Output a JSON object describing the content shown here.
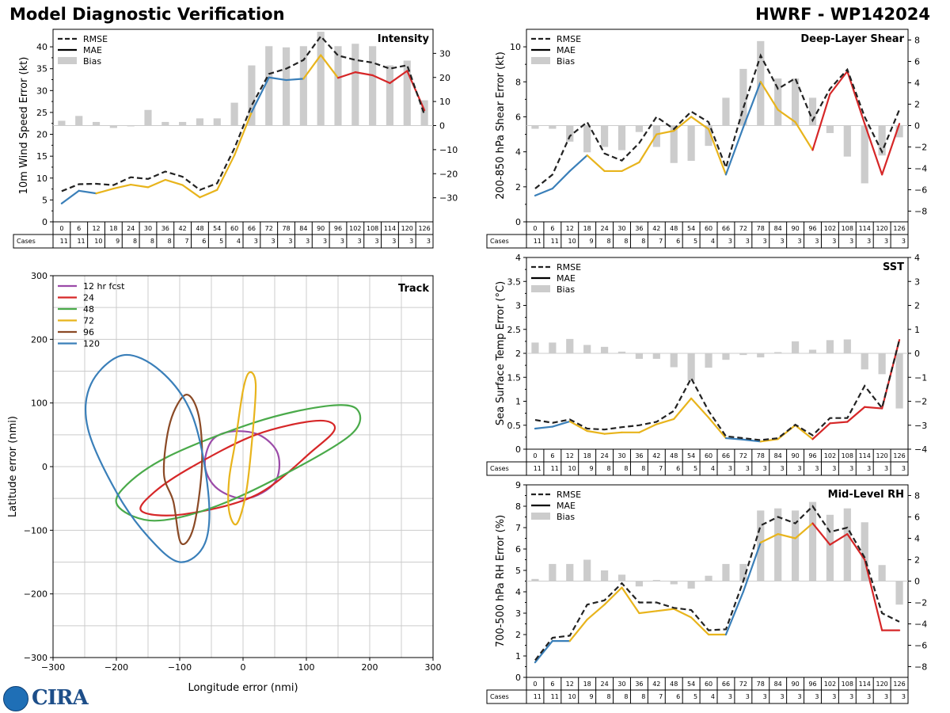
{
  "page": {
    "title_left": "Model Diagnostic Verification",
    "title_right": "HWRF - WP142024",
    "logo_text": "CIRA"
  },
  "colors": {
    "rmse": "#222222",
    "bias": "#cccccc",
    "grid": "#cccccc",
    "seg_blue": "#3a7fb9",
    "seg_gold": "#e8b41c",
    "seg_red": "#d62728"
  },
  "table": {
    "hours": [
      "0",
      "6",
      "12",
      "18",
      "24",
      "30",
      "36",
      "42",
      "48",
      "54",
      "60",
      "66",
      "72",
      "78",
      "84",
      "90",
      "96",
      "102",
      "108",
      "114",
      "120",
      "126"
    ],
    "cases_label": "Cases",
    "cases": [
      "11",
      "11",
      "10",
      "9",
      "8",
      "8",
      "8",
      "7",
      "6",
      "5",
      "4",
      "3",
      "3",
      "3",
      "3",
      "3",
      "3",
      "3",
      "3",
      "3",
      "3",
      "3"
    ]
  },
  "chart_data": [
    {
      "id": "intensity",
      "type": "line",
      "title": "Intensity",
      "ylabel": "10m Wind Speed Error (kt)",
      "ylim": [
        0,
        44
      ],
      "yticks": [
        0,
        5,
        10,
        15,
        20,
        25,
        30,
        35,
        40
      ],
      "y2lim": [
        -40,
        40
      ],
      "y2ticks": [
        -30,
        -20,
        -10,
        0,
        10,
        20,
        30
      ],
      "legend": [
        "RMSE",
        "MAE",
        "Bias"
      ],
      "rmse": [
        7,
        8.6,
        8.7,
        8.4,
        10.2,
        9.8,
        11.5,
        10.3,
        7.3,
        8.8,
        16.8,
        26.6,
        33.8,
        35,
        37,
        42.4,
        38,
        37,
        36.4,
        35,
        35.8,
        24.5
      ],
      "mae": [
        4.2,
        7.1,
        6.5,
        7.6,
        8.5,
        7.9,
        9.6,
        8.4,
        5.6,
        7.3,
        15.2,
        25.1,
        33,
        32.4,
        32.7,
        38.1,
        32.9,
        34.2,
        33.5,
        31.7,
        34.5,
        25.5
      ],
      "mae_colors": [
        "blue",
        "blue",
        "blue",
        "gold",
        "gold",
        "gold",
        "gold",
        "gold",
        "gold",
        "gold",
        "gold",
        "gold",
        "blue",
        "blue",
        "blue",
        "gold",
        "gold",
        "red",
        "red",
        "red",
        "red",
        "red"
      ],
      "bias": [
        2,
        4,
        1.5,
        -1,
        0,
        6.5,
        1.5,
        1.5,
        3,
        3,
        9.5,
        25,
        33,
        32.5,
        33,
        39,
        33,
        34,
        33,
        25,
        27,
        10.5
      ]
    },
    {
      "id": "shear",
      "type": "line",
      "title": "Deep-Layer Shear",
      "ylabel": "200-850 hPa Shear Error (kt)",
      "ylim": [
        0,
        11
      ],
      "yticks": [
        0,
        2,
        4,
        6,
        8,
        10
      ],
      "y2lim": [
        -9,
        9
      ],
      "y2ticks": [
        -8,
        -6,
        -4,
        -2,
        0,
        2,
        4,
        6,
        8
      ],
      "legend": [
        "RMSE",
        "MAE",
        "Bias"
      ],
      "rmse": [
        1.9,
        2.7,
        4.9,
        5.7,
        3.9,
        3.5,
        4.5,
        6,
        5.3,
        6.3,
        5.7,
        3.1,
        6.5,
        9.5,
        7.6,
        8.2,
        5.8,
        7.6,
        8.7,
        6,
        4,
        6.4
      ],
      "mae": [
        1.5,
        1.9,
        2.9,
        3.8,
        2.9,
        2.9,
        3.4,
        5,
        5.2,
        6,
        5.3,
        2.7,
        5.4,
        8,
        6.4,
        5.7,
        4.1,
        7.3,
        8.6,
        5.6,
        2.7,
        5.6
      ],
      "mae_colors": [
        "blue",
        "blue",
        "blue",
        "blue",
        "gold",
        "gold",
        "gold",
        "gold",
        "gold",
        "gold",
        "gold",
        "gold",
        "blue",
        "blue",
        "gold",
        "gold",
        "gold",
        "red",
        "red",
        "red",
        "red",
        "red"
      ],
      "bias": [
        -0.3,
        -0.3,
        -1.5,
        -2.5,
        -2,
        -2.3,
        -0.6,
        -2,
        -3.5,
        -3.3,
        -1.9,
        2.6,
        5.3,
        7.9,
        4.4,
        4.4,
        2.6,
        -0.7,
        -2.9,
        -5.4,
        -2.8,
        -1.1
      ]
    },
    {
      "id": "sst",
      "type": "line",
      "title": "SST",
      "ylabel": "Sea Surface Temp Error (°C)",
      "ylim": [
        0,
        4
      ],
      "yticks": [
        0,
        0.5,
        1,
        1.5,
        2,
        2.5,
        3,
        3.5,
        4
      ],
      "y2lim": [
        -4,
        4
      ],
      "y2ticks": [
        -4,
        -3,
        -2,
        -1,
        0,
        1,
        2,
        3,
        4
      ],
      "legend": [
        "RMSE",
        "MAE",
        "Bias"
      ],
      "rmse": [
        0.61,
        0.55,
        0.62,
        0.43,
        0.41,
        0.46,
        0.5,
        0.57,
        0.8,
        1.48,
        0.8,
        0.27,
        0.23,
        0.19,
        0.23,
        0.51,
        0.29,
        0.65,
        0.65,
        1.32,
        0.86,
        2.28
      ],
      "mae": [
        0.43,
        0.47,
        0.58,
        0.38,
        0.32,
        0.35,
        0.35,
        0.52,
        0.63,
        1.06,
        0.66,
        0.23,
        0.2,
        0.16,
        0.21,
        0.5,
        0.21,
        0.54,
        0.57,
        0.88,
        0.85,
        2.28
      ],
      "mae_colors": [
        "blue",
        "blue",
        "blue",
        "gold",
        "gold",
        "gold",
        "gold",
        "gold",
        "gold",
        "gold",
        "gold",
        "gold",
        "blue",
        "blue",
        "gold",
        "gold",
        "gold",
        "red",
        "red",
        "red",
        "red",
        "red"
      ],
      "bias": [
        0.45,
        0.45,
        0.6,
        0.35,
        0.27,
        0.07,
        -0.23,
        -0.23,
        -0.58,
        -1.15,
        -0.6,
        -0.27,
        -0.07,
        -0.17,
        0.05,
        0.5,
        0.15,
        0.55,
        0.58,
        -0.67,
        -0.87,
        -2.3
      ]
    },
    {
      "id": "rh",
      "type": "line",
      "title": "Mid-Level RH",
      "ylabel": "700-500 hPa RH Error (%)",
      "ylim": [
        0,
        9
      ],
      "yticks": [
        0,
        1,
        2,
        3,
        4,
        5,
        6,
        7,
        8,
        9
      ],
      "y2lim": [
        -9,
        9
      ],
      "y2ticks": [
        -8,
        -6,
        -4,
        -2,
        0,
        2,
        4,
        6,
        8
      ],
      "legend": [
        "RMSE",
        "MAE",
        "Bias"
      ],
      "rmse": [
        0.8,
        1.85,
        1.95,
        3.4,
        3.6,
        4.4,
        3.5,
        3.5,
        3.25,
        3.15,
        2.2,
        2.25,
        4.5,
        7.1,
        7.5,
        7.2,
        8,
        6.8,
        7,
        5.6,
        3,
        2.6
      ],
      "mae": [
        0.7,
        1.7,
        1.7,
        2.7,
        3.4,
        4.2,
        3,
        3.1,
        3.2,
        2.8,
        2,
        2,
        4,
        6.3,
        6.7,
        6.5,
        7.2,
        6.2,
        6.7,
        5.5,
        2.2,
        2.2
      ],
      "mae_colors": [
        "blue",
        "blue",
        "blue",
        "gold",
        "gold",
        "gold",
        "gold",
        "gold",
        "gold",
        "gold",
        "gold",
        "gold",
        "blue",
        "blue",
        "gold",
        "gold",
        "gold",
        "red",
        "red",
        "red",
        "red",
        "red"
      ],
      "bias": [
        0.2,
        1.6,
        1.6,
        2,
        1,
        0.6,
        -0.5,
        0.1,
        -0.3,
        -0.7,
        0.5,
        1.6,
        1.6,
        6.6,
        6.8,
        6.6,
        7.4,
        6.2,
        6.8,
        5.5,
        1.5,
        -2.2
      ]
    },
    {
      "id": "track",
      "type": "scatter",
      "title": "Track",
      "xlabel": "Longitude error (nmi)",
      "ylabel": "Latitude error (nmi)",
      "xlim": [
        -300,
        300
      ],
      "ylim": [
        -300,
        300
      ],
      "ticks": [
        -300,
        -200,
        -100,
        0,
        100,
        200,
        300
      ],
      "legend_title": "",
      "ellipses": [
        {
          "label": "12 hr fcst",
          "color": "#9b4aa8",
          "points": [
            [
              -20,
              55
            ],
            [
              25,
              50
            ],
            [
              55,
              20
            ],
            [
              50,
              -25
            ],
            [
              5,
              -50
            ],
            [
              -40,
              -35
            ],
            [
              -60,
              0
            ],
            [
              -50,
              40
            ]
          ]
        },
        {
          "label": "24",
          "color": "#d62728",
          "points": [
            [
              -160,
              -70
            ],
            [
              -95,
              -75
            ],
            [
              20,
              -45
            ],
            [
              110,
              25
            ],
            [
              145,
              60
            ],
            [
              115,
              72
            ],
            [
              20,
              50
            ],
            [
              -80,
              0
            ],
            [
              -140,
              -40
            ]
          ]
        },
        {
          "label": "48",
          "color": "#4aaa4a",
          "points": [
            [
              -195,
              -65
            ],
            [
              -140,
              -85
            ],
            [
              -50,
              -65
            ],
            [
              60,
              -15
            ],
            [
              170,
              50
            ],
            [
              180,
              90
            ],
            [
              130,
              95
            ],
            [
              20,
              70
            ],
            [
              -120,
              15
            ],
            [
              -190,
              -35
            ]
          ]
        },
        {
          "label": "72",
          "color": "#e8b41c",
          "points": [
            [
              -22,
              -70
            ],
            [
              -10,
              -90
            ],
            [
              5,
              -40
            ],
            [
              15,
              50
            ],
            [
              20,
              130
            ],
            [
              10,
              148
            ],
            [
              0,
              120
            ],
            [
              -12,
              40
            ],
            [
              -22,
              -20
            ]
          ]
        },
        {
          "label": "96",
          "color": "#8b4a26",
          "points": [
            [
              -110,
              -55
            ],
            [
              -98,
              -120
            ],
            [
              -78,
              -95
            ],
            [
              -65,
              0
            ],
            [
              -70,
              80
            ],
            [
              -90,
              113
            ],
            [
              -115,
              70
            ],
            [
              -125,
              -10
            ]
          ]
        },
        {
          "label": "120",
          "color": "#3a7fb9",
          "points": [
            [
              -240,
              130
            ],
            [
              -190,
              175
            ],
            [
              -130,
              150
            ],
            [
              -80,
              80
            ],
            [
              -55,
              -40
            ],
            [
              -60,
              -120
            ],
            [
              -100,
              -150
            ],
            [
              -150,
              -110
            ],
            [
              -200,
              -40
            ],
            [
              -245,
              60
            ]
          ]
        }
      ]
    }
  ]
}
